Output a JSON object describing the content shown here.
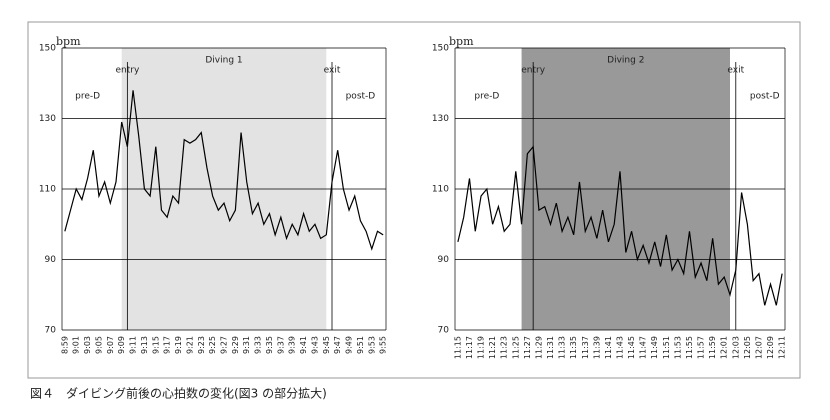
{
  "caption": "図４　ダイビング前後の心拍数の変化(図3 の部分拡大)",
  "chart_data": [
    {
      "type": "line",
      "y_label": "bpm",
      "ylim": [
        70,
        150
      ],
      "yticks": [
        70,
        90,
        110,
        130,
        150
      ],
      "grid": true,
      "color": "#000000",
      "categories": [
        "8:59",
        null,
        "9:01",
        null,
        "9:03",
        null,
        "9:05",
        null,
        "9:07",
        null,
        "9:09",
        null,
        "9:11",
        null,
        "9:13",
        null,
        "9:15",
        null,
        "9:17",
        null,
        "9:19",
        null,
        "9:21",
        null,
        "9:23",
        null,
        "9:25",
        null,
        "9:27",
        null,
        "9:29",
        null,
        "9:31",
        null,
        "9:33",
        null,
        "9:35",
        null,
        "9:37",
        null,
        "9:39",
        null,
        "9:41",
        null,
        "9:43",
        null,
        "9:45",
        null,
        "9:47",
        null,
        "9:49",
        null,
        "9:51",
        null,
        "9:53",
        null,
        "9:55"
      ],
      "values": [
        98,
        104,
        110,
        107,
        113,
        121,
        108,
        112,
        106,
        112,
        129,
        122,
        138,
        125,
        110,
        108,
        122,
        104,
        102,
        108,
        106,
        124,
        123,
        124,
        126,
        116,
        108,
        104,
        106,
        101,
        104,
        126,
        112,
        103,
        106,
        100,
        103,
        97,
        102,
        96,
        100,
        97,
        103,
        98,
        100,
        96,
        97,
        112,
        121,
        110,
        104,
        108,
        101,
        98,
        93,
        98,
        97
      ],
      "shade": {
        "from": "9:09",
        "to": "9:45",
        "label": "Diving 1",
        "color": "#e3e3e3"
      },
      "events": [
        {
          "label": "entry",
          "x": "9:10"
        },
        {
          "label": "exit",
          "x": "9:46"
        }
      ],
      "phases": [
        {
          "label": "pre-D",
          "x": "9:03"
        },
        {
          "label": "post-D",
          "x": "9:51"
        }
      ]
    },
    {
      "type": "line",
      "y_label": "bpm",
      "ylim": [
        70,
        150
      ],
      "yticks": [
        70,
        90,
        110,
        130,
        150
      ],
      "grid": true,
      "color": "#000000",
      "categories": [
        "11:15",
        null,
        "11:17",
        null,
        "11:19",
        null,
        "11:21",
        null,
        "11:23",
        null,
        "11:25",
        null,
        "11:27",
        null,
        "11:29",
        null,
        "11:31",
        null,
        "11:33",
        null,
        "11:35",
        null,
        "11:37",
        null,
        "11:39",
        null,
        "11:41",
        null,
        "11:43",
        null,
        "11:45",
        null,
        "11:47",
        null,
        "11:49",
        null,
        "11:51",
        null,
        "11:53",
        null,
        "11:55",
        null,
        "11:57",
        null,
        "11:59",
        null,
        "12:01",
        null,
        "12:03",
        null,
        "12:05",
        null,
        "12:07",
        null,
        "12:09",
        null,
        "12:11"
      ],
      "values": [
        95,
        102,
        113,
        98,
        108,
        110,
        100,
        105,
        98,
        100,
        115,
        100,
        120,
        122,
        104,
        105,
        100,
        106,
        98,
        102,
        97,
        112,
        98,
        102,
        96,
        104,
        95,
        100,
        115,
        92,
        98,
        90,
        94,
        89,
        95,
        88,
        97,
        87,
        90,
        86,
        98,
        85,
        89,
        84,
        96,
        83,
        85,
        80,
        87,
        109,
        100,
        84,
        86,
        77,
        83,
        77,
        86
      ],
      "shade": {
        "from": "11:26",
        "to": "12:02",
        "label": "Diving 2",
        "color": "#999999"
      },
      "events": [
        {
          "label": "entry",
          "x": "11:28"
        },
        {
          "label": "exit",
          "x": "12:03"
        }
      ],
      "phases": [
        {
          "label": "pre-D",
          "x": "11:20"
        },
        {
          "label": "post-D",
          "x": "12:08"
        }
      ]
    }
  ]
}
